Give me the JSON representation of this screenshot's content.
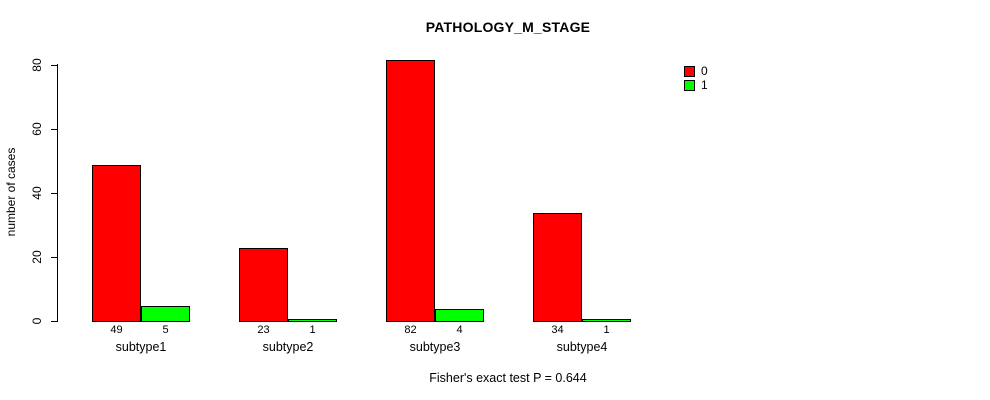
{
  "title": "PATHOLOGY_M_STAGE",
  "footer": "Fisher's exact test P = 0.644",
  "y_axis": {
    "label": "number of cases",
    "ticks": [
      0,
      20,
      40,
      60,
      80
    ]
  },
  "legend": [
    {
      "label": "0",
      "color": "#FF0000"
    },
    {
      "label": "1",
      "color": "#00FF00"
    }
  ],
  "chart_data": {
    "type": "bar",
    "title": "PATHOLOGY_M_STAGE",
    "categories": [
      "subtype1",
      "subtype2",
      "subtype3",
      "subtype4"
    ],
    "series": [
      {
        "name": "0",
        "color": "#FF0000",
        "values": [
          49,
          23,
          82,
          34
        ]
      },
      {
        "name": "1",
        "color": "#00FF00",
        "values": [
          5,
          1,
          4,
          1
        ]
      }
    ],
    "xlabel": "",
    "ylabel": "number of cases",
    "ylim": [
      0,
      80
    ],
    "yticks": [
      0,
      20,
      40,
      60,
      80
    ],
    "grid": false,
    "bar_value_labels_shown": true,
    "legend_position": "right-outside",
    "annotation": "Fisher's exact test P = 0.644"
  }
}
